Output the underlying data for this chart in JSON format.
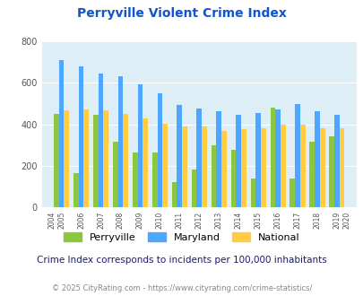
{
  "title": "Perryville Violent Crime Index",
  "subtitle": "Crime Index corresponds to incidents per 100,000 inhabitants",
  "footer": "© 2025 CityRating.com - https://www.cityrating.com/crime-statistics/",
  "years": [
    2005,
    2006,
    2007,
    2008,
    2009,
    2010,
    2011,
    2012,
    2013,
    2014,
    2015,
    2016,
    2017,
    2018,
    2019
  ],
  "perryville": [
    450,
    163,
    445,
    315,
    265,
    263,
    120,
    183,
    298,
    277,
    140,
    480,
    140,
    315,
    340
  ],
  "maryland": [
    710,
    678,
    645,
    630,
    595,
    550,
    495,
    478,
    465,
    447,
    453,
    470,
    500,
    463,
    448
  ],
  "national": [
    468,
    473,
    466,
    452,
    430,
    401,
    390,
    390,
    368,
    378,
    383,
    397,
    400,
    383,
    383
  ],
  "color_perryville": "#8dc63f",
  "color_maryland": "#4da6ff",
  "color_national": "#ffcc44",
  "bg_color": "#ddeef6",
  "ylim": [
    0,
    800
  ],
  "yticks": [
    0,
    200,
    400,
    600,
    800
  ],
  "title_color": "#1155cc",
  "subtitle_color": "#1a1a6e",
  "footer_color": "#888888",
  "footer_link_color": "#4488cc",
  "bar_width": 0.26
}
